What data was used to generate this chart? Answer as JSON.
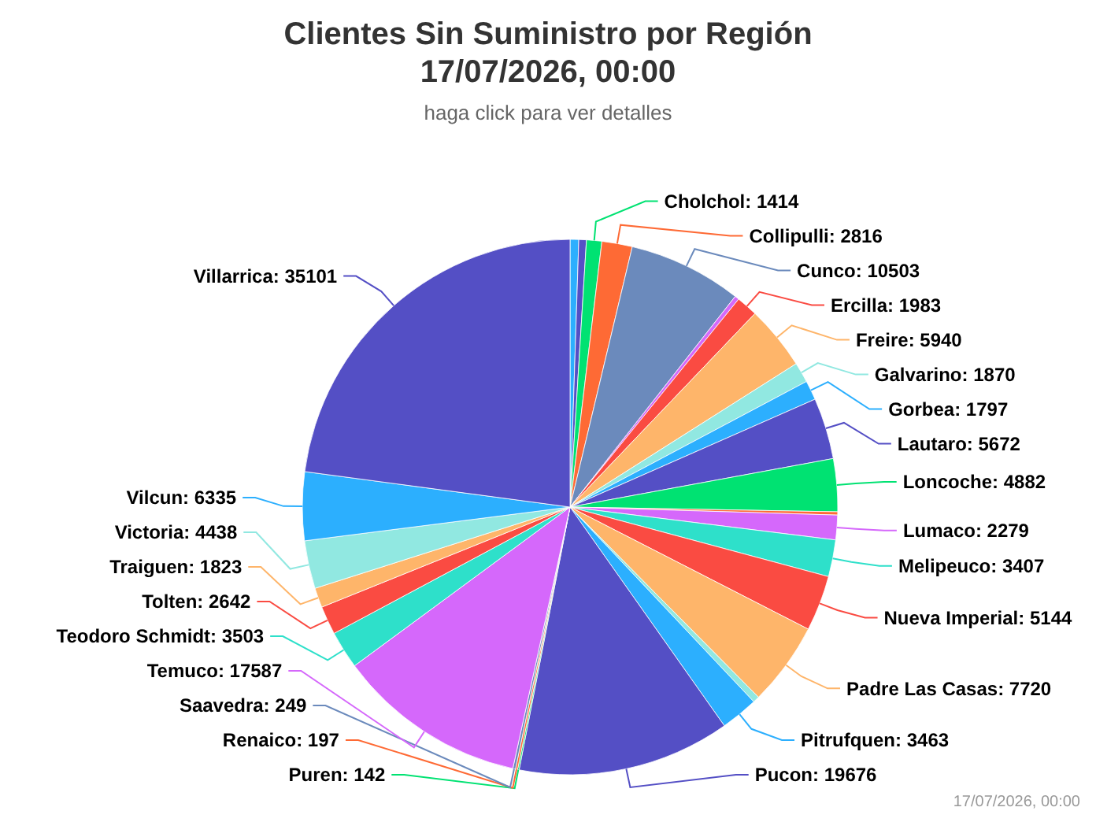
{
  "chart_data": {
    "type": "pie",
    "title": "Clientes Sin Suministro por Región\n17/07/2026, 00:00",
    "subtitle": "haga click para ver detalles",
    "categories": [
      null,
      null,
      "Cholchol",
      "Collipulli",
      "Cunco",
      null,
      "Ercilla",
      "Freire",
      "Galvarino",
      "Gorbea",
      "Lautaro",
      "Loncoche",
      null,
      "Lumaco",
      "Melipeuco",
      "Nueva Imperial",
      "Padre Las Casas",
      null,
      "Pitrufquen",
      "Pucon",
      "Puren",
      "Renaico",
      "Saavedra",
      "Temuco",
      "Teodoro Schmidt",
      "Tolten",
      "Traiguen",
      "Victoria",
      "Vilcun",
      "Villarrica"
    ],
    "values": [
      800,
      700,
      1414,
      2816,
      10503,
      400,
      1983,
      5940,
      1870,
      1797,
      5672,
      4882,
      300,
      2279,
      3407,
      5144,
      7720,
      600,
      3463,
      19676,
      142,
      197,
      249,
      17587,
      3503,
      2642,
      1823,
      4438,
      6335,
      35101
    ],
    "value_labels": [
      null,
      null,
      "1414",
      "2816",
      "10503",
      null,
      "1983",
      "5940",
      "1870",
      "1797",
      "5672",
      "4882",
      null,
      "2279",
      "3407",
      "5144",
      "7720",
      null,
      "3463",
      "19676",
      "142",
      "197",
      "249",
      "17587",
      "3503",
      "2642",
      "1823",
      "4438",
      "6335",
      "35101"
    ],
    "colors": [
      "#2caffe",
      "#544fc5",
      "#00e272",
      "#fe6a35",
      "#6b8abc",
      "#d568fb",
      "#fa4b42",
      "#feb56a",
      "#91e8e1",
      "#2caffe",
      "#544fc5",
      "#00e272",
      "#fe6a35",
      "#d568fb",
      "#2ee0ca",
      "#fa4b42",
      "#feb56a",
      "#91e8e1",
      "#2caffe",
      "#544fc5",
      "#00e272",
      "#fe6a35",
      "#6b8abc",
      "#d568fb",
      "#2ee0ca",
      "#fa4b42",
      "#feb56a",
      "#91e8e1",
      "#2caffe",
      "#544fc5"
    ],
    "annotations": [
      "17/07/2026, 00:00"
    ]
  }
}
